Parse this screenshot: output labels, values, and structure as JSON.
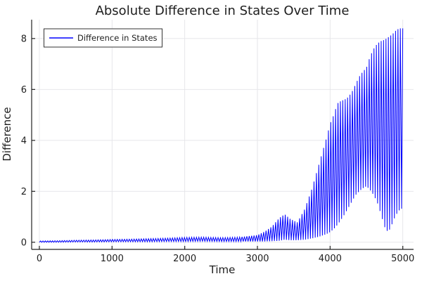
{
  "chart_data": {
    "type": "line",
    "title": "Absolute Difference in States Over Time",
    "xlabel": "Time",
    "ylabel": "Difference",
    "grid": true,
    "background": "#ffffff",
    "grid_color": "#e4e4e8",
    "axis_color": "#222222",
    "text_color": "#1e1e1e",
    "xlim": [
      -106,
      5148
    ],
    "ylim": [
      -0.28,
      8.74
    ],
    "x_ticks": [
      0,
      1000,
      2000,
      3000,
      4000,
      5000
    ],
    "y_ticks": [
      0,
      2,
      4,
      6,
      8
    ],
    "legend": {
      "position": "top-left",
      "entries": [
        {
          "label": "Difference in States",
          "color": "#0000ff"
        }
      ]
    },
    "series": [
      {
        "name": "Difference in States",
        "color": "#0000ff",
        "waveform": "oscillation between lower and upper envelope",
        "oscillation_period": 33,
        "envelope": {
          "t": [
            0,
            250,
            500,
            750,
            1000,
            1250,
            1500,
            1750,
            2000,
            2250,
            2500,
            2750,
            3000,
            3100,
            3200,
            3300,
            3375,
            3450,
            3550,
            3650,
            3750,
            3850,
            3950,
            4000,
            4050,
            4100,
            4150,
            4200,
            4250,
            4300,
            4350,
            4400,
            4450,
            4500,
            4550,
            4600,
            4650,
            4700,
            4750,
            4800,
            4850,
            4900,
            4950,
            5000
          ],
          "lower": [
            0.0,
            0.0,
            0.01,
            0.01,
            0.02,
            0.02,
            0.02,
            0.03,
            0.03,
            0.04,
            0.03,
            0.03,
            0.03,
            0.03,
            0.04,
            0.06,
            0.1,
            0.08,
            0.08,
            0.1,
            0.15,
            0.22,
            0.32,
            0.4,
            0.52,
            0.68,
            0.88,
            1.1,
            1.35,
            1.6,
            1.85,
            2.0,
            2.12,
            2.2,
            2.05,
            1.85,
            1.55,
            1.1,
            0.6,
            0.38,
            0.7,
            1.05,
            1.25,
            1.35
          ],
          "upper": [
            0.05,
            0.06,
            0.08,
            0.09,
            0.11,
            0.12,
            0.14,
            0.16,
            0.19,
            0.2,
            0.18,
            0.2,
            0.28,
            0.42,
            0.62,
            0.95,
            1.1,
            0.92,
            0.78,
            1.3,
            2.1,
            3.1,
            4.1,
            4.65,
            5.0,
            5.45,
            5.55,
            5.6,
            5.7,
            5.9,
            6.2,
            6.5,
            6.7,
            6.85,
            7.3,
            7.6,
            7.8,
            7.9,
            7.95,
            8.05,
            8.15,
            8.3,
            8.4,
            8.4
          ]
        }
      }
    ]
  }
}
